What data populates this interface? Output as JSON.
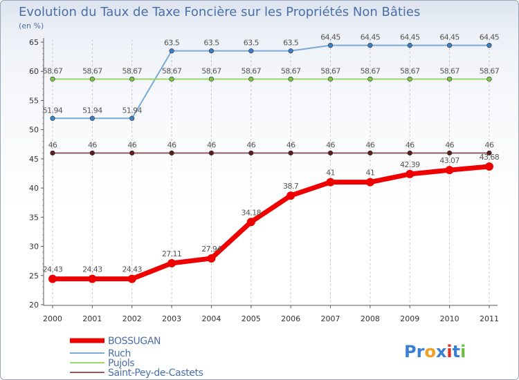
{
  "chart_data": {
    "type": "line",
    "title": "Evolution du Taux de Taxe Foncière sur les Propriétés Non Bâties",
    "ylabel": "(en %)",
    "xlabel": "",
    "ylim": [
      20,
      65
    ],
    "yticks": [
      20,
      25,
      30,
      35,
      40,
      45,
      50,
      55,
      60,
      65
    ],
    "x": [
      "2000",
      "2001",
      "2002",
      "2003",
      "2004",
      "2005",
      "2006",
      "2007",
      "2008",
      "2009",
      "2010",
      "2011"
    ],
    "grid": "vertical dashed",
    "legend_position": "bottom-left",
    "series": [
      {
        "name": "Ruch",
        "color": "#7aaad6",
        "marker": "#3b7fc4",
        "width": 2,
        "values": [
          51.94,
          51.94,
          51.94,
          63.5,
          63.5,
          63.5,
          63.5,
          64.45,
          64.45,
          64.45,
          64.45,
          64.45
        ],
        "labels": [
          "51.94",
          "51.94",
          "51.94",
          "63.5",
          "63.5",
          "63.5",
          "63.5",
          "64.45",
          "64.45",
          "64.45",
          "64.45",
          "64.45"
        ]
      },
      {
        "name": "Pujols",
        "color": "#9ad86a",
        "marker": "#7cc54a",
        "width": 2,
        "values": [
          58.67,
          58.67,
          58.67,
          58.67,
          58.67,
          58.67,
          58.67,
          58.67,
          58.67,
          58.67,
          58.67,
          58.67
        ],
        "labels": [
          "58.67",
          "58.67",
          "58.67",
          "58.67",
          "58.67",
          "58.67",
          "58.67",
          "58.67",
          "58.67",
          "58.67",
          "58.67",
          "58.67"
        ]
      },
      {
        "name": "Saint-Pey-de-Castets",
        "color": "#8c5a5a",
        "marker": "#5a1c1c",
        "width": 2,
        "values": [
          46,
          46,
          46,
          46,
          46,
          46,
          46,
          46,
          46,
          46,
          46,
          46
        ],
        "labels": [
          "46",
          "46",
          "46",
          "46",
          "46",
          "46",
          "46",
          "46",
          "46",
          "46",
          "46",
          "46"
        ]
      },
      {
        "name": "BOSSUGAN",
        "color": "#ee0000",
        "marker": "#ee0000",
        "width": 7,
        "values": [
          24.43,
          24.43,
          24.43,
          27.11,
          27.94,
          34.18,
          38.7,
          41,
          41,
          42.39,
          43.07,
          43.68
        ],
        "labels": [
          "24.43",
          "24.43",
          "24.43",
          "27.11",
          "27.94",
          "34.18",
          "38.7",
          "41",
          "41",
          "42.39",
          "43.07",
          "43.68"
        ]
      }
    ],
    "legend": [
      "BOSSUGAN",
      "Ruch",
      "Pujols",
      "Saint-Pey-de-Castets"
    ]
  },
  "logo": {
    "text": "Proxiti"
  }
}
